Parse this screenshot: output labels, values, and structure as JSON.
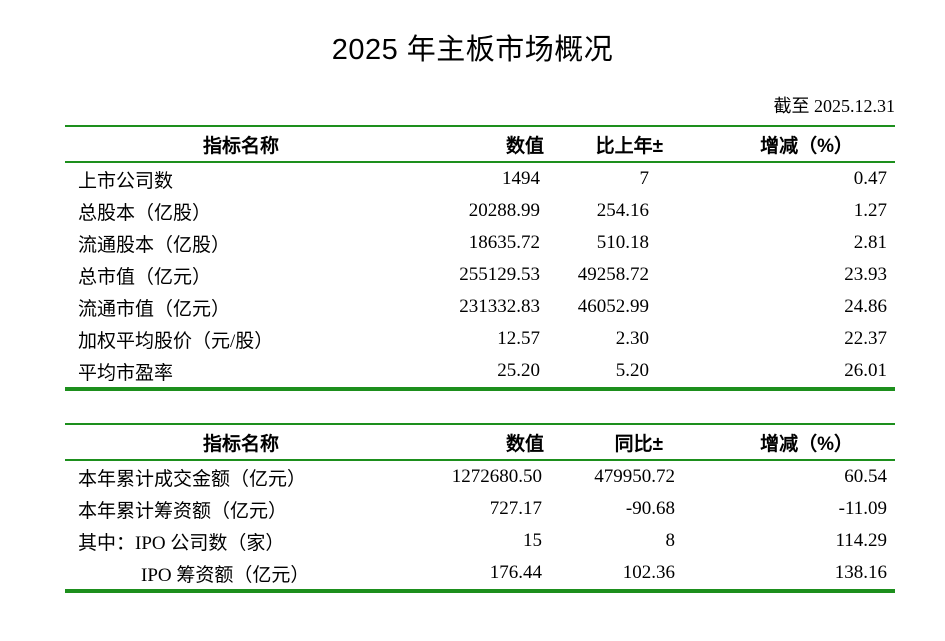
{
  "page": {
    "title": "2025 年主板市场概况",
    "as_of": "截至 2025.12.31"
  },
  "colors": {
    "table_line_green": "#1d8f1d",
    "text": "#000000",
    "background": "#ffffff"
  },
  "tables": [
    {
      "name": "market_overview",
      "headers": [
        "指标名称",
        "数值",
        "比上年±",
        "增减（%）"
      ],
      "rows": [
        [
          "上市公司数",
          "1494",
          "7",
          "0.47"
        ],
        [
          "总股本（亿股）",
          "20288.99",
          "254.16",
          "1.27"
        ],
        [
          "流通股本（亿股）",
          "18635.72",
          "510.18",
          "2.81"
        ],
        [
          "总市值（亿元）",
          "255129.53",
          "49258.72",
          "23.93"
        ],
        [
          "流通市值（亿元）",
          "231332.83",
          "46052.99",
          "24.86"
        ],
        [
          "加权平均股价（元/股）",
          "12.57",
          "2.30",
          "22.37"
        ],
        [
          "平均市盈率",
          "25.20",
          "5.20",
          "26.01"
        ]
      ]
    },
    {
      "name": "trading_summary",
      "headers": [
        "指标名称",
        "数值",
        "同比±",
        "增减（%）"
      ],
      "rows": [
        [
          "本年累计成交金额（亿元）",
          "1272680.50",
          "479950.72",
          "60.54"
        ],
        [
          "本年累计筹资额（亿元）",
          "727.17",
          "-90.68",
          "-11.09"
        ],
        [
          "其中：IPO 公司数（家）",
          "15",
          "8",
          "114.29"
        ],
        [
          "IPO 筹资额（亿元）",
          "176.44",
          "102.36",
          "138.16"
        ]
      ]
    }
  ]
}
